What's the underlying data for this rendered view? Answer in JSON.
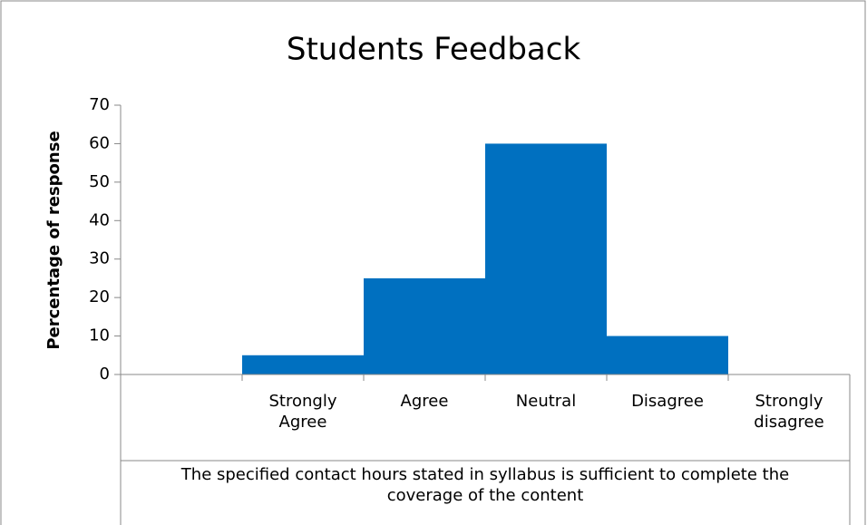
{
  "chart_data": {
    "type": "bar",
    "title": "Students Feedback",
    "y_label": "Percentage of response",
    "x_label": "The specified contact hours stated in syllabus is sufficient to complete the coverage of the content",
    "categories": [
      null,
      "Strongly Agree",
      "Agree",
      "Neutral",
      "Disagree",
      "Strongly disagree"
    ],
    "values": [
      null,
      5,
      25,
      60,
      10,
      0
    ],
    "color": "#0070c0",
    "ylim": [
      0,
      70
    ],
    "yticks": [
      0,
      10,
      20,
      30,
      40,
      50,
      60,
      70
    ],
    "grid": false
  }
}
